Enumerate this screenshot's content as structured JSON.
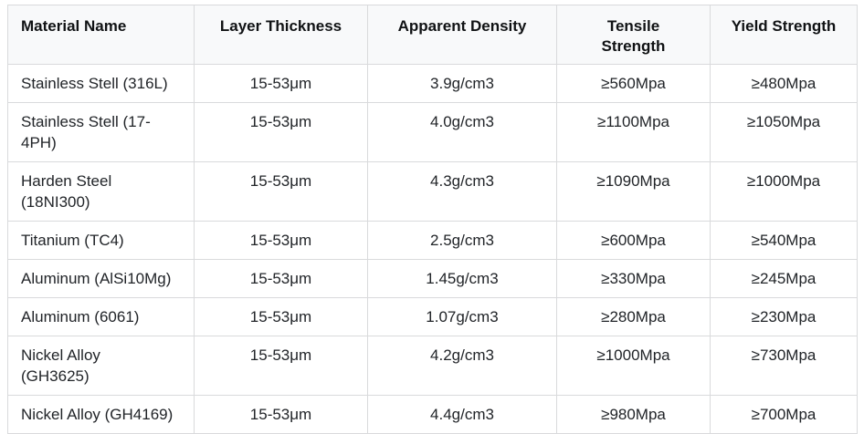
{
  "colors": {
    "header_background": "#f8f9fa",
    "border": "#d9dadc",
    "header_text": "#101214",
    "body_text": "#212428",
    "page_background": "#ffffff"
  },
  "table": {
    "columns": [
      {
        "label": "Material Name"
      },
      {
        "label": "Layer Thickness"
      },
      {
        "label": "Apparent Density"
      },
      {
        "label": "Tensile Strength"
      },
      {
        "label": "Yield Strength"
      }
    ],
    "rows": [
      {
        "material": "Stainless Stell (316L)",
        "layer_thickness": "15-53μm",
        "apparent_density": "3.9g/cm3",
        "tensile_strength": "≥560Mpa",
        "yield_strength": "≥480Mpa"
      },
      {
        "material": "Stainless Stell (17-\n4PH)",
        "layer_thickness": "15-53μm",
        "apparent_density": "4.0g/cm3",
        "tensile_strength": "≥1100Mpa",
        "yield_strength": "≥1050Mpa"
      },
      {
        "material": "Harden Steel\n(18NI300)",
        "layer_thickness": "15-53μm",
        "apparent_density": "4.3g/cm3",
        "tensile_strength": "≥1090Mpa",
        "yield_strength": "≥1000Mpa"
      },
      {
        "material": "Titanium (TC4)",
        "layer_thickness": "15-53μm",
        "apparent_density": "2.5g/cm3",
        "tensile_strength": "≥600Mpa",
        "yield_strength": "≥540Mpa"
      },
      {
        "material": "Aluminum (AlSi10Mg)",
        "layer_thickness": "15-53μm",
        "apparent_density": "1.45g/cm3",
        "tensile_strength": "≥330Mpa",
        "yield_strength": "≥245Mpa"
      },
      {
        "material": "Aluminum (6061)",
        "layer_thickness": "15-53μm",
        "apparent_density": "1.07g/cm3",
        "tensile_strength": "≥280Mpa",
        "yield_strength": "≥230Mpa"
      },
      {
        "material": "Nickel Alloy\n(GH3625)",
        "layer_thickness": "15-53μm",
        "apparent_density": "4.2g/cm3",
        "tensile_strength": "≥1000Mpa",
        "yield_strength": "≥730Mpa"
      },
      {
        "material": "Nickel Alloy (GH4169)",
        "layer_thickness": "15-53μm",
        "apparent_density": "4.4g/cm3",
        "tensile_strength": "≥980Mpa",
        "yield_strength": "≥700Mpa"
      }
    ]
  }
}
